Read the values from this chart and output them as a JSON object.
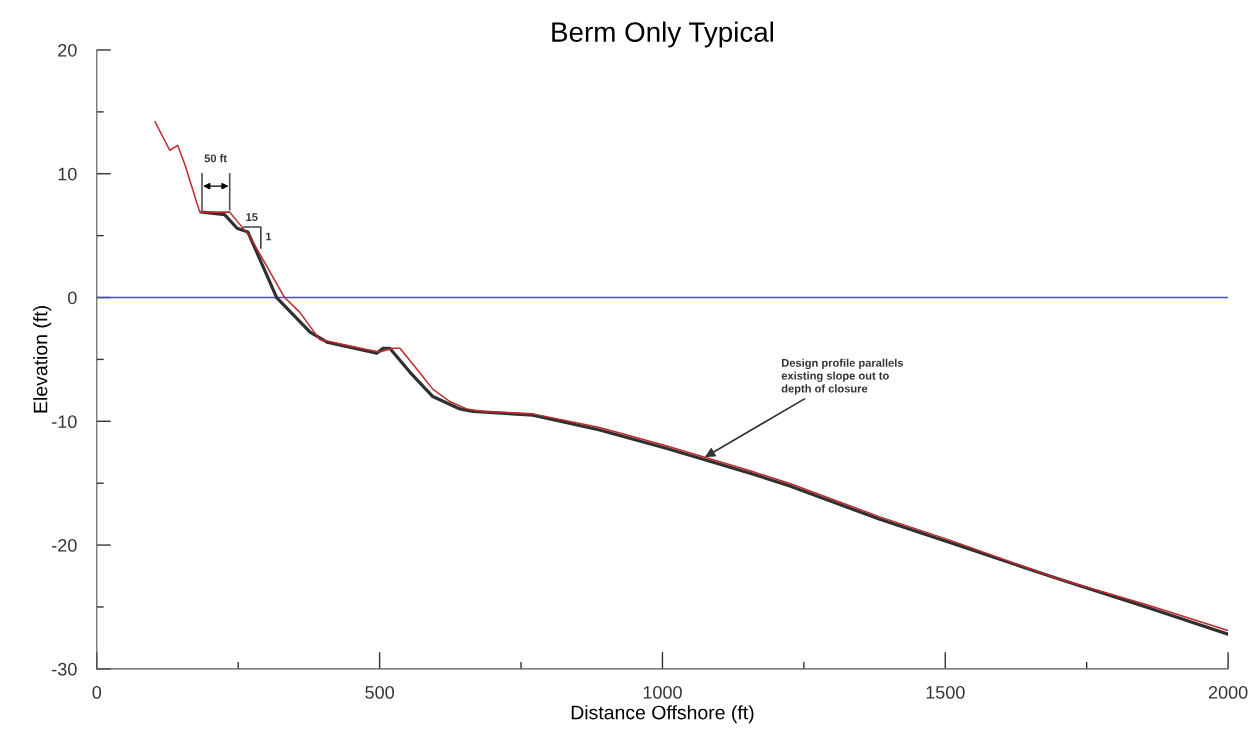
{
  "chart_data": {
    "type": "line",
    "title": "Berm Only Typical",
    "xlabel": "Distance Offshore (ft)",
    "ylabel": "Elevation (ft)",
    "xlim": [
      0,
      2000
    ],
    "ylim": [
      -30,
      20
    ],
    "xticks": [
      0,
      {
        "value": 250,
        "label": null
      },
      500,
      {
        "value": 750,
        "label": null
      },
      1000,
      {
        "value": 1250,
        "label": null
      },
      1500,
      {
        "value": 1750,
        "label": null
      },
      2000
    ],
    "yticks": [
      -30,
      {
        "value": -25,
        "label": null
      },
      -20,
      {
        "value": -15,
        "label": null
      },
      -10,
      {
        "value": -5,
        "label": null
      },
      0,
      {
        "value": 5,
        "label": null
      },
      10,
      {
        "value": 15,
        "label": null
      },
      20
    ],
    "grid": false,
    "legend": false,
    "marker": "none",
    "line_style": "solid",
    "series": [
      {
        "color": "#303030",
        "x": [
          186,
          226,
          248,
          267,
          318,
          377,
          407,
          495,
          506,
          518,
          553,
          594,
          642,
          665,
          771,
          889,
          1008,
          1155,
          1224,
          1383,
          1508,
          1698,
          1855,
          2000
        ],
        "values": [
          6.9,
          6.7,
          5.6,
          5.3,
          0,
          -2.8,
          -3.6,
          -4.5,
          -4.1,
          -4.1,
          -6.0,
          -8.0,
          -9.0,
          -9.2,
          -9.5,
          -10.7,
          -12.2,
          -14.2,
          -15.2,
          -17.9,
          -19.8,
          -22.7,
          -25.0,
          -27.2
        ]
      },
      {
        "color": "#c0282d",
        "x": [
          103,
          129,
          143,
          156,
          182,
          235,
          271,
          332,
          359,
          394,
          477,
          500,
          523,
          536,
          566,
          594,
          624,
          654,
          683,
          771,
          889,
          1008,
          1155,
          1224,
          1383,
          1508,
          1698,
          1855,
          2000
        ],
        "values": [
          14.2,
          11.9,
          12.3,
          10.7,
          6.9,
          6.9,
          4.9,
          0,
          -1.2,
          -3.4,
          -4.2,
          -4.4,
          -4.1,
          -4.1,
          -5.8,
          -7.4,
          -8.4,
          -9.0,
          -9.2,
          -9.4,
          -10.5,
          -12.0,
          -14.0,
          -15.0,
          -17.7,
          -19.6,
          -22.7,
          -24.8,
          -26.9
        ]
      }
    ],
    "ref_lines": [
      {
        "axis": "y",
        "value": 0,
        "color": "#4848c8"
      }
    ],
    "annotations": [
      "50 ft",
      "15",
      "1",
      {
        "text": "Design profile parallels\nexisting slope out to\ndepth of closure",
        "x": 1075,
        "y": -12.9
      }
    ]
  }
}
